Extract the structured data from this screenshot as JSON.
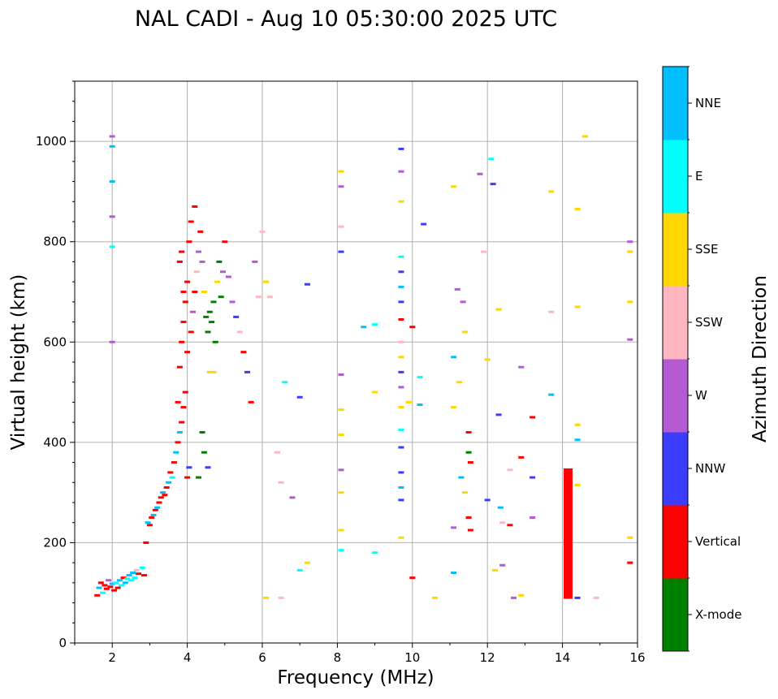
{
  "chart_data": {
    "type": "scatter",
    "title": "NAL CADI - Aug 10 05:30:00 2025 UTC",
    "xlabel": "Frequency (MHz)",
    "ylabel": "Virtual height (km)",
    "xlim": [
      1,
      16
    ],
    "ylim": [
      0,
      1120
    ],
    "x_ticks": [
      2,
      4,
      6,
      8,
      10,
      12,
      14,
      16
    ],
    "y_ticks": [
      0,
      200,
      400,
      600,
      800,
      1000
    ],
    "grid": true,
    "colorbar": {
      "label": "Azimuth Direction",
      "categories": [
        {
          "name": "X-mode",
          "color": "#008000"
        },
        {
          "name": "Vertical",
          "color": "#ff0000"
        },
        {
          "name": "NNW",
          "color": "#3c3cff"
        },
        {
          "name": "W",
          "color": "#b45ad2"
        },
        {
          "name": "SSW",
          "color": "#ffb6c1"
        },
        {
          "name": "SSE",
          "color": "#ffd700"
        },
        {
          "name": "E",
          "color": "#00ffff"
        },
        {
          "name": "NNE",
          "color": "#00bfff"
        }
      ]
    },
    "points": [
      [
        1.6,
        95,
        "Vertical"
      ],
      [
        1.65,
        110,
        "NNE"
      ],
      [
        1.7,
        120,
        "Vertical"
      ],
      [
        1.75,
        100,
        "E"
      ],
      [
        1.8,
        115,
        "Vertical"
      ],
      [
        1.85,
        108,
        "Vertical"
      ],
      [
        1.9,
        125,
        "W"
      ],
      [
        1.95,
        112,
        "Vertical"
      ],
      [
        2.0,
        118,
        "NNE"
      ],
      [
        2.05,
        105,
        "Vertical"
      ],
      [
        2.1,
        120,
        "E"
      ],
      [
        2.15,
        110,
        "Vertical"
      ],
      [
        2.2,
        125,
        "NNE"
      ],
      [
        2.25,
        115,
        "E"
      ],
      [
        2.3,
        130,
        "Vertical"
      ],
      [
        2.35,
        120,
        "NNE"
      ],
      [
        2.4,
        128,
        "E"
      ],
      [
        2.45,
        135,
        "NNE"
      ],
      [
        2.5,
        125,
        "E"
      ],
      [
        2.55,
        140,
        "NNE"
      ],
      [
        2.6,
        130,
        "E"
      ],
      [
        2.65,
        145,
        "SSW"
      ],
      [
        2.7,
        138,
        "Vertical"
      ],
      [
        2.8,
        150,
        "E"
      ],
      [
        2.85,
        135,
        "Vertical"
      ],
      [
        2.9,
        200,
        "Vertical"
      ],
      [
        2.95,
        240,
        "NNE"
      ],
      [
        3.0,
        235,
        "Vertical"
      ],
      [
        3.05,
        250,
        "Vertical"
      ],
      [
        3.1,
        255,
        "NNE"
      ],
      [
        3.15,
        265,
        "Vertical"
      ],
      [
        3.2,
        270,
        "NNE"
      ],
      [
        3.25,
        280,
        "Vertical"
      ],
      [
        3.3,
        290,
        "Vertical"
      ],
      [
        3.35,
        300,
        "NNE"
      ],
      [
        3.4,
        295,
        "Vertical"
      ],
      [
        3.45,
        310,
        "Vertical"
      ],
      [
        3.5,
        320,
        "NNE"
      ],
      [
        3.55,
        340,
        "Vertical"
      ],
      [
        3.6,
        330,
        "E"
      ],
      [
        3.65,
        360,
        "Vertical"
      ],
      [
        3.7,
        380,
        "NNE"
      ],
      [
        3.75,
        400,
        "Vertical"
      ],
      [
        3.8,
        420,
        "NNE"
      ],
      [
        3.85,
        440,
        "Vertical"
      ],
      [
        3.9,
        470,
        "Vertical"
      ],
      [
        3.95,
        500,
        "Vertical"
      ],
      [
        4.0,
        330,
        "Vertical"
      ],
      [
        4.05,
        350,
        "NNW"
      ],
      [
        3.75,
        480,
        "Vertical"
      ],
      [
        3.8,
        550,
        "Vertical"
      ],
      [
        3.85,
        600,
        "Vertical"
      ],
      [
        3.9,
        640,
        "Vertical"
      ],
      [
        3.95,
        680,
        "Vertical"
      ],
      [
        4.0,
        720,
        "Vertical"
      ],
      [
        3.8,
        760,
        "Vertical"
      ],
      [
        3.85,
        780,
        "Vertical"
      ],
      [
        3.9,
        700,
        "Vertical"
      ],
      [
        4.05,
        800,
        "Vertical"
      ],
      [
        4.1,
        840,
        "Vertical"
      ],
      [
        4.2,
        870,
        "Vertical"
      ],
      [
        4.1,
        620,
        "Vertical"
      ],
      [
        4.0,
        580,
        "Vertical"
      ],
      [
        4.15,
        660,
        "W"
      ],
      [
        4.2,
        700,
        "Vertical"
      ],
      [
        4.25,
        740,
        "SSW"
      ],
      [
        4.3,
        780,
        "W"
      ],
      [
        4.35,
        820,
        "Vertical"
      ],
      [
        4.4,
        760,
        "W"
      ],
      [
        4.45,
        700,
        "SSE"
      ],
      [
        4.5,
        650,
        "X-mode"
      ],
      [
        4.55,
        620,
        "X-mode"
      ],
      [
        4.6,
        660,
        "X-mode"
      ],
      [
        4.65,
        640,
        "X-mode"
      ],
      [
        4.7,
        680,
        "X-mode"
      ],
      [
        4.75,
        600,
        "X-mode"
      ],
      [
        4.8,
        720,
        "SSE"
      ],
      [
        4.85,
        760,
        "X-mode"
      ],
      [
        4.9,
        690,
        "X-mode"
      ],
      [
        4.95,
        740,
        "W"
      ],
      [
        4.4,
        420,
        "X-mode"
      ],
      [
        4.45,
        380,
        "X-mode"
      ],
      [
        4.3,
        330,
        "X-mode"
      ],
      [
        4.55,
        350,
        "NNW"
      ],
      [
        4.6,
        540,
        "SSE"
      ],
      [
        4.7,
        540,
        "SSE"
      ],
      [
        5.0,
        800,
        "Vertical"
      ],
      [
        5.1,
        730,
        "W"
      ],
      [
        5.2,
        680,
        "W"
      ],
      [
        5.3,
        650,
        "NNW"
      ],
      [
        5.4,
        620,
        "SSW"
      ],
      [
        5.5,
        580,
        "Vertical"
      ],
      [
        5.6,
        540,
        "NNW"
      ],
      [
        5.7,
        480,
        "Vertical"
      ],
      [
        5.8,
        760,
        "W"
      ],
      [
        5.9,
        690,
        "SSW"
      ],
      [
        6.0,
        820,
        "SSW"
      ],
      [
        6.1,
        720,
        "SSE"
      ],
      [
        6.2,
        690,
        "SSW"
      ],
      [
        6.4,
        380,
        "SSW"
      ],
      [
        6.5,
        320,
        "SSW"
      ],
      [
        6.6,
        520,
        "E"
      ],
      [
        6.8,
        290,
        "W"
      ],
      [
        7.0,
        490,
        "NNW"
      ],
      [
        7.2,
        715,
        "NNW"
      ],
      [
        2.0,
        1010,
        "W"
      ],
      [
        2.0,
        990,
        "NNE"
      ],
      [
        2.0,
        920,
        "NNE"
      ],
      [
        2.0,
        850,
        "W"
      ],
      [
        2.0,
        790,
        "E"
      ],
      [
        2.0,
        600,
        "W"
      ],
      [
        6.1,
        90,
        "SSE"
      ],
      [
        6.5,
        90,
        "SSW"
      ],
      [
        7.2,
        160,
        "SSE"
      ],
      [
        7.0,
        145,
        "E"
      ],
      [
        8.1,
        940,
        "SSE"
      ],
      [
        8.1,
        910,
        "W"
      ],
      [
        8.1,
        830,
        "SSW"
      ],
      [
        8.1,
        780,
        "NNW"
      ],
      [
        8.1,
        535,
        "W"
      ],
      [
        8.1,
        465,
        "SSE"
      ],
      [
        8.1,
        415,
        "SSE"
      ],
      [
        8.1,
        345,
        "W"
      ],
      [
        8.1,
        300,
        "SSE"
      ],
      [
        8.1,
        225,
        "SSE"
      ],
      [
        8.1,
        185,
        "E"
      ],
      [
        8.7,
        630,
        "NNE"
      ],
      [
        9.0,
        635,
        "E"
      ],
      [
        9.0,
        500,
        "SSE"
      ],
      [
        9.0,
        180,
        "E"
      ],
      [
        9.7,
        985,
        "NNW"
      ],
      [
        9.7,
        940,
        "W"
      ],
      [
        9.7,
        880,
        "SSE"
      ],
      [
        9.7,
        770,
        "E"
      ],
      [
        9.7,
        740,
        "NNW"
      ],
      [
        9.7,
        710,
        "NNE"
      ],
      [
        9.7,
        680,
        "NNW"
      ],
      [
        9.7,
        645,
        "Vertical"
      ],
      [
        9.7,
        600,
        "SSW"
      ],
      [
        9.7,
        570,
        "SSE"
      ],
      [
        9.7,
        540,
        "NNW"
      ],
      [
        9.7,
        510,
        "W"
      ],
      [
        9.7,
        470,
        "SSE"
      ],
      [
        9.7,
        425,
        "E"
      ],
      [
        9.7,
        390,
        "NNW"
      ],
      [
        9.7,
        340,
        "NNW"
      ],
      [
        9.7,
        310,
        "NNE"
      ],
      [
        9.7,
        285,
        "NNW"
      ],
      [
        9.7,
        210,
        "SSE"
      ],
      [
        9.9,
        480,
        "SSE"
      ],
      [
        10.0,
        630,
        "Vertical"
      ],
      [
        10.0,
        130,
        "Vertical"
      ],
      [
        10.2,
        530,
        "E"
      ],
      [
        10.2,
        475,
        "NNE"
      ],
      [
        10.3,
        835,
        "NNW"
      ],
      [
        10.6,
        90,
        "SSE"
      ],
      [
        11.1,
        910,
        "SSE"
      ],
      [
        11.1,
        570,
        "NNE"
      ],
      [
        11.1,
        470,
        "SSE"
      ],
      [
        11.1,
        230,
        "W"
      ],
      [
        11.1,
        140,
        "NNE"
      ],
      [
        11.2,
        705,
        "W"
      ],
      [
        11.25,
        520,
        "SSE"
      ],
      [
        11.3,
        330,
        "NNE"
      ],
      [
        11.35,
        680,
        "W"
      ],
      [
        11.4,
        620,
        "SSE"
      ],
      [
        11.4,
        300,
        "SSE"
      ],
      [
        11.5,
        420,
        "Vertical"
      ],
      [
        11.5,
        380,
        "X-mode"
      ],
      [
        11.5,
        250,
        "Vertical"
      ],
      [
        11.55,
        360,
        "Vertical"
      ],
      [
        11.55,
        225,
        "Vertical"
      ],
      [
        11.8,
        935,
        "W"
      ],
      [
        11.9,
        780,
        "SSW"
      ],
      [
        12.0,
        565,
        "SSE"
      ],
      [
        12.0,
        285,
        "NNW"
      ],
      [
        12.1,
        965,
        "E"
      ],
      [
        12.15,
        915,
        "NNW"
      ],
      [
        12.2,
        145,
        "SSE"
      ],
      [
        12.3,
        665,
        "SSE"
      ],
      [
        12.3,
        455,
        "NNW"
      ],
      [
        12.35,
        270,
        "NNE"
      ],
      [
        12.4,
        240,
        "SSW"
      ],
      [
        12.4,
        155,
        "W"
      ],
      [
        12.6,
        345,
        "SSW"
      ],
      [
        12.6,
        235,
        "Vertical"
      ],
      [
        12.7,
        90,
        "W"
      ],
      [
        12.9,
        550,
        "W"
      ],
      [
        12.9,
        370,
        "Vertical"
      ],
      [
        12.9,
        95,
        "SSE"
      ],
      [
        13.2,
        450,
        "Vertical"
      ],
      [
        13.2,
        330,
        "NNW"
      ],
      [
        13.2,
        250,
        "W"
      ],
      [
        13.7,
        900,
        "SSE"
      ],
      [
        13.7,
        660,
        "SSW"
      ],
      [
        13.7,
        495,
        "NNE"
      ],
      [
        14.4,
        670,
        "SSE"
      ],
      [
        14.4,
        435,
        "SSE"
      ],
      [
        14.4,
        405,
        "NNE"
      ],
      [
        14.4,
        315,
        "SSE"
      ],
      [
        14.4,
        90,
        "NNW"
      ],
      [
        14.6,
        1010,
        "SSE"
      ],
      [
        14.4,
        865,
        "SSE"
      ],
      [
        14.9,
        90,
        "SSW"
      ],
      [
        15.8,
        800,
        "W"
      ],
      [
        15.8,
        780,
        "SSE"
      ],
      [
        15.8,
        680,
        "SSE"
      ],
      [
        15.8,
        605,
        "W"
      ],
      [
        15.8,
        210,
        "SSE"
      ],
      [
        15.8,
        160,
        "Vertical"
      ]
    ],
    "bars": [
      {
        "x": 14.15,
        "y0": 88,
        "y1": 348,
        "direction": "Vertical"
      }
    ]
  }
}
